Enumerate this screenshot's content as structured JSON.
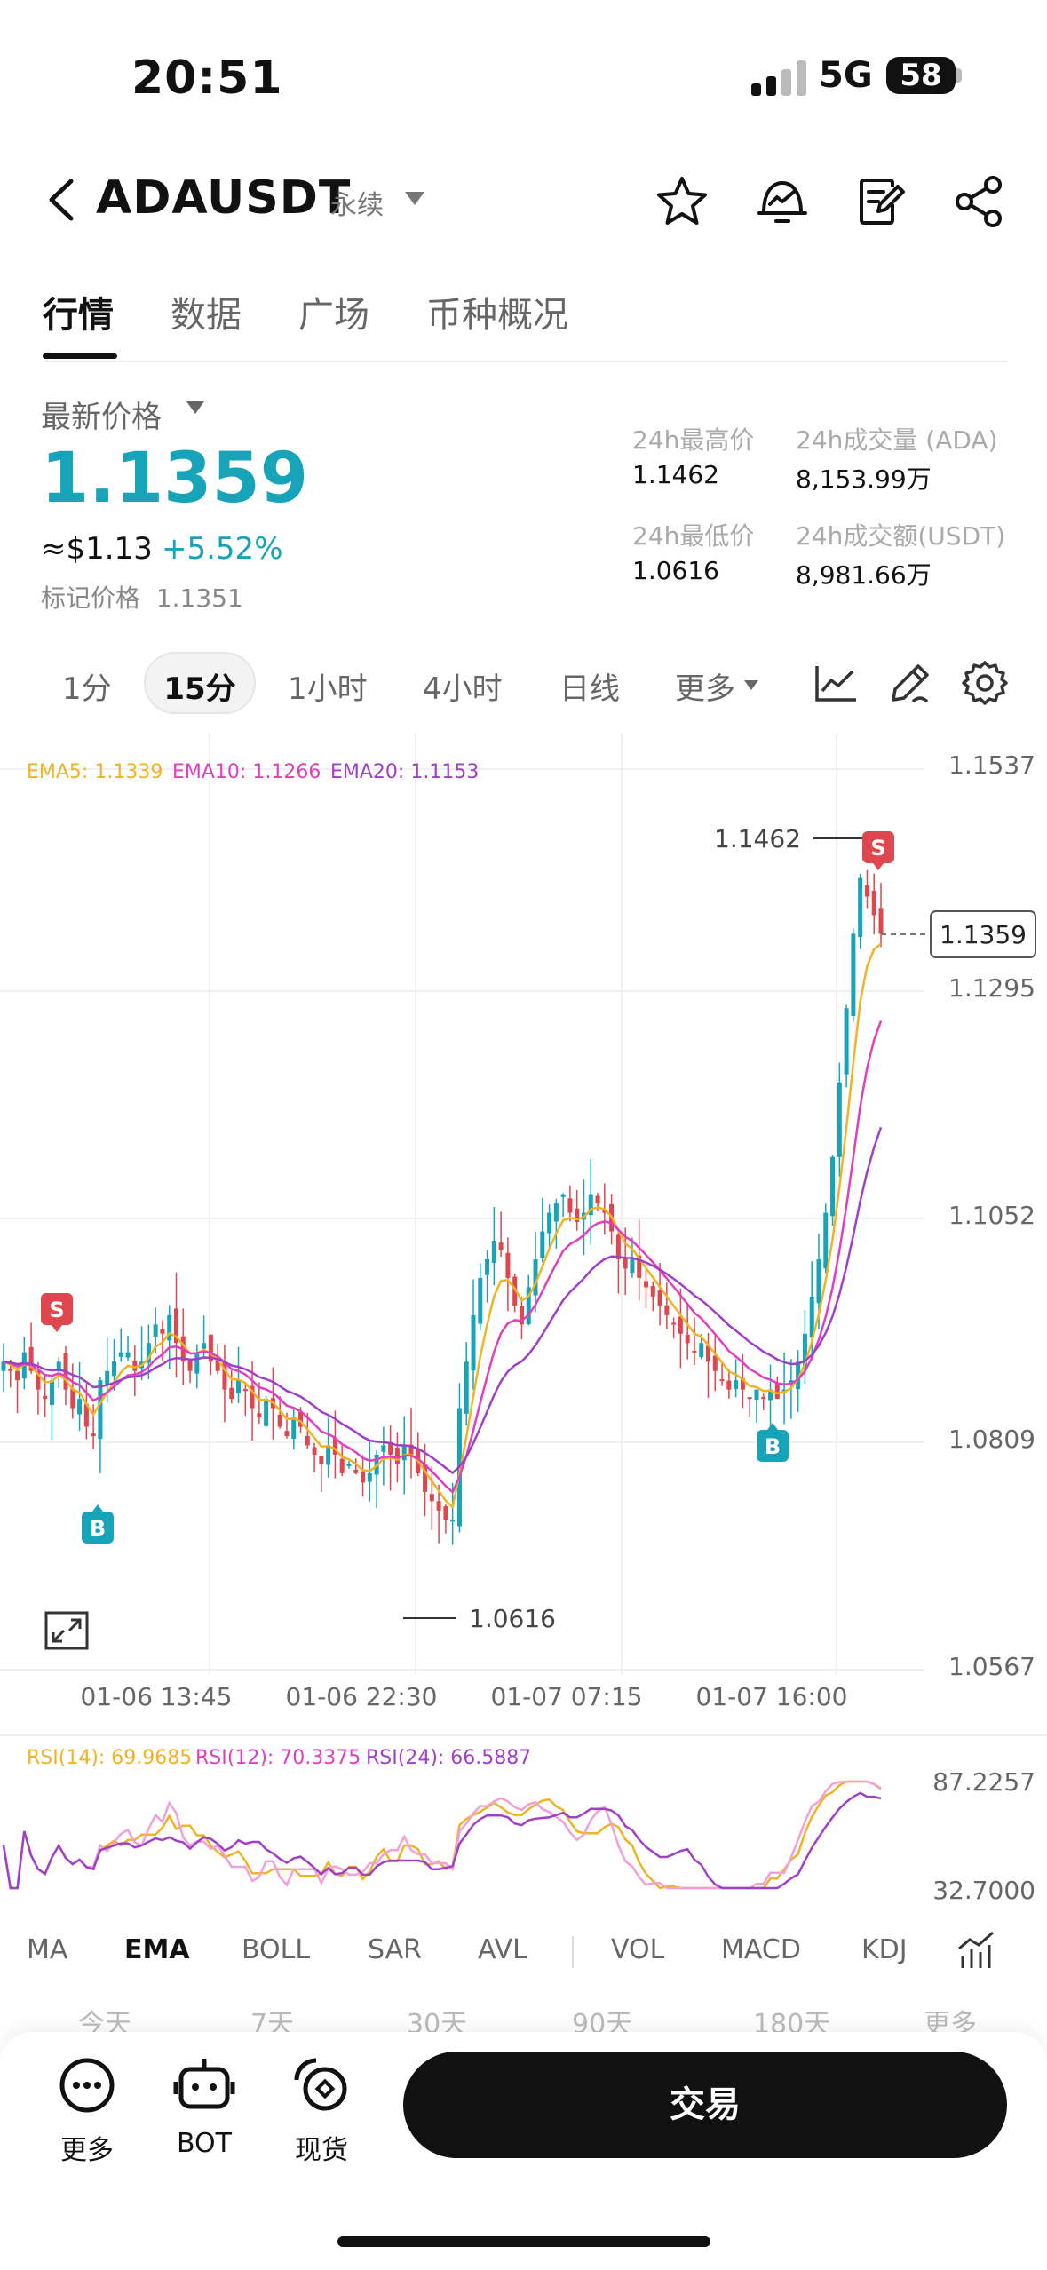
{
  "status": {
    "time": "20:51",
    "network": "5G",
    "battery": "58"
  },
  "header": {
    "pair": "ADAUSDT",
    "contract_type": "永续"
  },
  "tabs": [
    "行情",
    "数据",
    "广场",
    "币种概况"
  ],
  "price": {
    "label": "最新价格",
    "last": "1.1359",
    "usd": "≈$1.13",
    "change": "+5.52%",
    "mark_label": "标记价格",
    "mark": "1.1351"
  },
  "stats": {
    "high_label": "24h最高价",
    "high": "1.1462",
    "vol_label": "24h成交量 (ADA)",
    "vol": "8,153.99万",
    "low_label": "24h最低价",
    "low": "1.0616",
    "amount_label": "24h成交额(USDT)",
    "amount": "8,981.66万"
  },
  "intervals": [
    "1分",
    "15分",
    "1小时",
    "4小时",
    "日线",
    "更多"
  ],
  "active_interval": "15分",
  "chart_data": {
    "type": "candlestick",
    "y_ticks": [
      "1.1537",
      "1.1295",
      "1.1052",
      "1.0809",
      "1.0567"
    ],
    "ylim": [
      1.0567,
      1.1537
    ],
    "x_ticks": [
      "01-06 13:45",
      "01-06 22:30",
      "01-07 07:15",
      "01-07 16:00"
    ],
    "legend": {
      "ema5": "EMA5: 1.1339",
      "ema10": "EMA10: 1.1266",
      "ema20": "EMA20: 1.1153"
    },
    "high_marker": "1.1462",
    "low_marker": "1.0616",
    "current_price_tag": "1.1359",
    "trade_markers": [
      "S",
      "B",
      "B",
      "S"
    ],
    "close_series": [
      1.09,
      1.089,
      1.088,
      1.091,
      1.089,
      1.087,
      1.086,
      1.088,
      1.09,
      1.087,
      1.085,
      1.086,
      1.083,
      1.082,
      1.088,
      1.089,
      1.09,
      1.091,
      1.091,
      1.089,
      1.09,
      1.092,
      1.094,
      1.093,
      1.095,
      1.092,
      1.09,
      1.089,
      1.091,
      1.092,
      1.09,
      1.089,
      1.087,
      1.086,
      1.088,
      1.087,
      1.085,
      1.084,
      1.086,
      1.085,
      1.083,
      1.082,
      1.084,
      1.083,
      1.081,
      1.08,
      1.079,
      1.081,
      1.08,
      1.078,
      1.079,
      1.078,
      1.077,
      1.078,
      1.08,
      1.081,
      1.08,
      1.079,
      1.081,
      1.08,
      1.078,
      1.076,
      1.075,
      1.074,
      1.073,
      1.073,
      1.085,
      1.09,
      1.095,
      1.099,
      1.101,
      1.103,
      1.102,
      1.099,
      1.096,
      1.094,
      1.098,
      1.101,
      1.104,
      1.106,
      1.107,
      1.108,
      1.106,
      1.105,
      1.106,
      1.108,
      1.107,
      1.106,
      1.104,
      1.101,
      1.1,
      1.101,
      1.099,
      1.098,
      1.097,
      1.096,
      1.095,
      1.094,
      1.093,
      1.092,
      1.091,
      1.092,
      1.09,
      1.089,
      1.088,
      1.087,
      1.088,
      1.087,
      1.086,
      1.087,
      1.086,
      1.087,
      1.086,
      1.087,
      1.088,
      1.09,
      1.093,
      1.097,
      1.101,
      1.106,
      1.112,
      1.12,
      1.128,
      1.136,
      1.142,
      1.14,
      1.138,
      1.136
    ],
    "rsi_ticks": [
      "87.2257",
      "32.7000"
    ],
    "rsi_legend": {
      "rsi14": "RSI(14): 69.9685",
      "rsi12": "RSI(12): 70.3375",
      "rsi24": "RSI(24): 66.5887"
    }
  },
  "indicators": [
    "MA",
    "EMA",
    "BOLL",
    "SAR",
    "AVL",
    "VOL",
    "MACD",
    "KDJ"
  ],
  "active_indicator": "EMA",
  "ranges": [
    "今天",
    "7天",
    "30天",
    "90天",
    "180天",
    "更多"
  ],
  "bottom": {
    "more": "更多",
    "bot": "BOT",
    "spot": "现货",
    "trade": "交易"
  },
  "colors": {
    "up": "#17a3b8",
    "down": "#e0464e",
    "ema5": "#f0b323",
    "ema10": "#e040c0",
    "ema20": "#a040c8"
  }
}
